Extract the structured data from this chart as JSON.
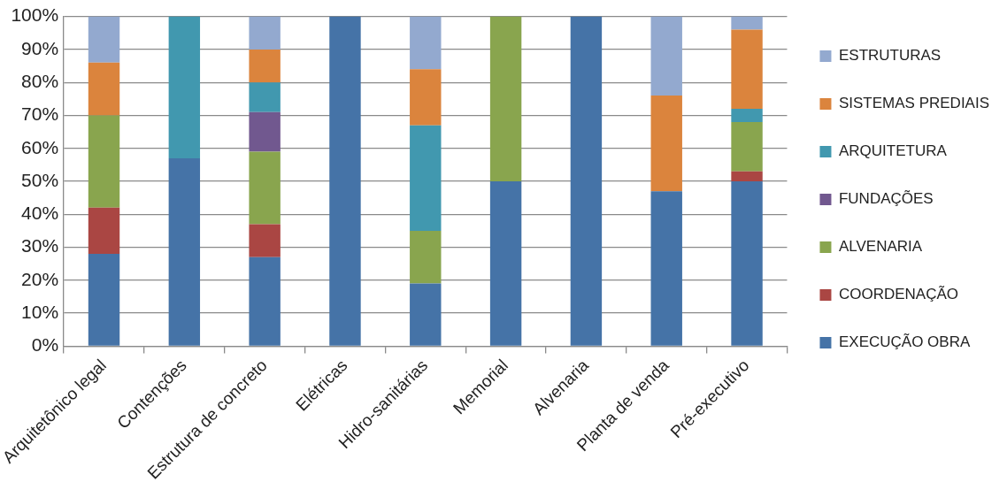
{
  "chart_data": {
    "type": "bar",
    "stacked": true,
    "categories": [
      "Arquitetônico legal",
      "Contenções",
      "Estrutura de concreto",
      "Elétricas",
      "Hidro-sanitárias",
      "Memorial",
      "Alvenaria",
      "Planta de venda",
      "Pré-executivo"
    ],
    "series": [
      {
        "name": "EXECUÇÃO OBRA",
        "color": "#4573a7",
        "values": [
          28,
          57,
          27,
          100,
          19,
          50,
          100,
          47,
          50
        ]
      },
      {
        "name": "COORDENAÇÃO",
        "color": "#aa4643",
        "values": [
          14,
          null,
          10,
          null,
          null,
          null,
          null,
          null,
          3
        ]
      },
      {
        "name": "ALVENARIA",
        "color": "#89a54e",
        "values": [
          28,
          null,
          22,
          null,
          16,
          50,
          null,
          null,
          15
        ]
      },
      {
        "name": "FUNDAÇÕES",
        "color": "#71588f",
        "values": [
          null,
          null,
          12,
          null,
          null,
          null,
          null,
          null,
          null
        ]
      },
      {
        "name": "ARQUITETURA",
        "color": "#4198af",
        "values": [
          null,
          43,
          9,
          null,
          32,
          null,
          null,
          null,
          4
        ]
      },
      {
        "name": "SISTEMAS PREDIAIS",
        "color": "#db843d",
        "values": [
          16,
          null,
          10,
          null,
          17,
          null,
          null,
          29,
          24
        ]
      },
      {
        "name": "ESTRUTURAS",
        "color": "#93a9cf",
        "values": [
          14,
          null,
          10,
          null,
          16,
          null,
          null,
          24,
          4
        ]
      }
    ],
    "ylim": [
      0,
      100
    ],
    "yticks": [
      {
        "value": 0,
        "label": "0%"
      },
      {
        "value": 10,
        "label": "10%"
      },
      {
        "value": 20,
        "label": "20%"
      },
      {
        "value": 30,
        "label": "30%"
      },
      {
        "value": 40,
        "label": "40%"
      },
      {
        "value": 50,
        "label": "50%"
      },
      {
        "value": 60,
        "label": "60%"
      },
      {
        "value": 70,
        "label": "70%"
      },
      {
        "value": 80,
        "label": "80%"
      },
      {
        "value": 90,
        "label": "90%"
      },
      {
        "value": 100,
        "label": "100%"
      }
    ],
    "grid": "y",
    "legend": "right"
  }
}
